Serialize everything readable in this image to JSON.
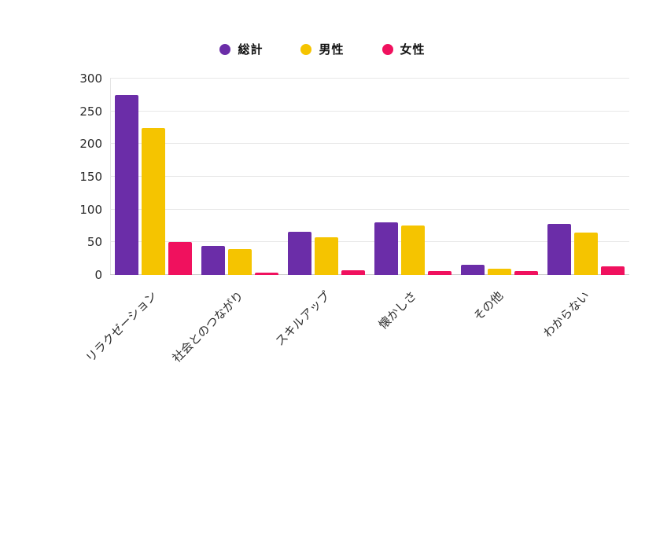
{
  "chart_data": {
    "type": "bar",
    "title": "",
    "categories": [
      "リラクゼーション",
      "社会とのつながり",
      "スキルアップ",
      "懐かしさ",
      "その他",
      "わからない"
    ],
    "series": [
      {
        "name": "総計",
        "color": "#6B2DA8",
        "values": [
          275,
          44,
          66,
          81,
          16,
          78
        ]
      },
      {
        "name": "男性",
        "color": "#F5C400",
        "values": [
          224,
          40,
          58,
          76,
          10,
          65
        ]
      },
      {
        "name": "女性",
        "color": "#F0115E",
        "values": [
          50,
          4,
          7,
          6,
          6,
          13
        ]
      }
    ],
    "ylim": [
      0,
      300
    ],
    "yticks": [
      0,
      50,
      100,
      150,
      200,
      250,
      300
    ],
    "grid": true,
    "legend_position": "top",
    "background_color": "#ffffff",
    "gridline_color": "#e8e8e8"
  }
}
